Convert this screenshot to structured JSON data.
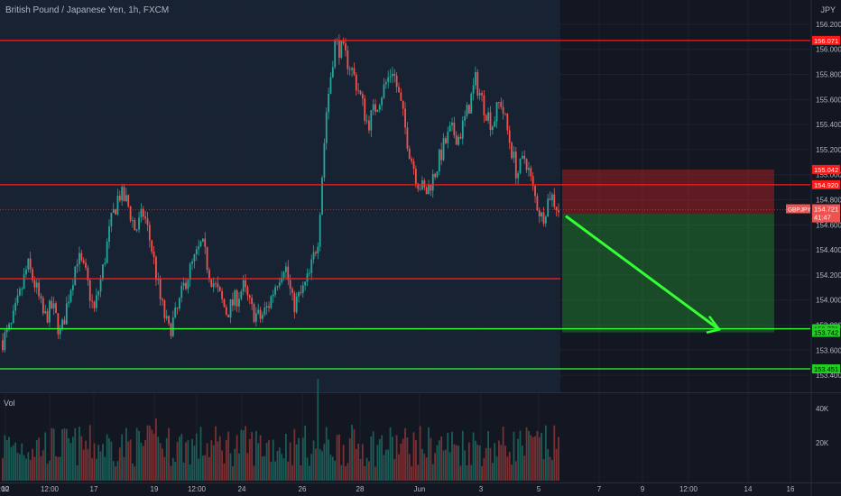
{
  "header": {
    "symbol_title": "British Pound / Japanese Yen, 1h, FXCM",
    "currency": "JPY"
  },
  "volume_pane": {
    "label": "Vol",
    "ticks": [
      "40K",
      "20K"
    ]
  },
  "colors": {
    "background": "#131722",
    "up": "#26a69a",
    "down": "#ef5350",
    "resistance": "#ff1a1a",
    "support": "#33ff33",
    "grid": "#1e2230"
  },
  "chart_data": {
    "type": "candlestick",
    "symbol": "GBPJPY",
    "interval": "1h",
    "y_axis": {
      "min": 153.3,
      "max": 156.25,
      "ticks": [
        156.2,
        156.0,
        155.8,
        155.6,
        155.4,
        155.2,
        155.0,
        154.8,
        154.6,
        154.4,
        154.2,
        154.0,
        153.8,
        153.6,
        153.4
      ]
    },
    "x_axis": {
      "ticks": [
        "12",
        "12:00",
        "17",
        "19",
        "12:00",
        "24",
        "26",
        "28",
        "Jun",
        "3",
        "5",
        "7",
        "9",
        "12:00",
        "14",
        "16",
        "12:00"
      ]
    },
    "price_path": [
      153.68,
      153.78,
      154.02,
      154.28,
      154.1,
      153.85,
      153.95,
      153.72,
      154.05,
      154.35,
      154.2,
      153.9,
      154.22,
      154.6,
      154.85,
      154.78,
      154.55,
      154.7,
      154.4,
      154.0,
      153.75,
      153.9,
      154.15,
      154.3,
      154.45,
      154.2,
      154.05,
      153.9,
      154.0,
      154.1,
      153.92,
      153.85,
      153.95,
      154.15,
      154.3,
      153.95,
      154.05,
      154.2,
      154.5,
      155.5,
      156.05,
      155.98,
      155.85,
      155.65,
      155.4,
      155.55,
      155.7,
      155.85,
      155.55,
      155.2,
      154.95,
      154.85,
      155.0,
      155.2,
      155.35,
      155.3,
      155.5,
      155.75,
      155.55,
      155.4,
      155.6,
      155.3,
      155.0,
      155.15,
      154.85,
      154.65,
      154.85,
      154.72
    ],
    "horizontal_levels": [
      {
        "label": "156.071",
        "value": 156.071,
        "role": "resistance"
      },
      {
        "label": "154.920",
        "value": 154.92,
        "role": "resistance"
      },
      {
        "value": 154.17,
        "role": "resistance"
      },
      {
        "label": "153.771",
        "value": 153.771,
        "role": "support"
      },
      {
        "label": "153.451",
        "value": 153.451,
        "role": "support"
      }
    ],
    "position": {
      "type": "short",
      "stop_label": "155.042",
      "stop": 155.042,
      "entry": 154.69,
      "target_label": "153.742",
      "target": 153.742
    },
    "price_tags": [
      {
        "label": "154.684",
        "value": 154.684,
        "color": "#4a4e59"
      }
    ],
    "last_price": {
      "symbol": "GBPJPY",
      "value": 154.721,
      "label": "154.721",
      "countdown": "41:47"
    },
    "volume_ticks": [
      {
        "label": "40K",
        "value": 40000
      },
      {
        "label": "20K",
        "value": 20000
      }
    ]
  }
}
